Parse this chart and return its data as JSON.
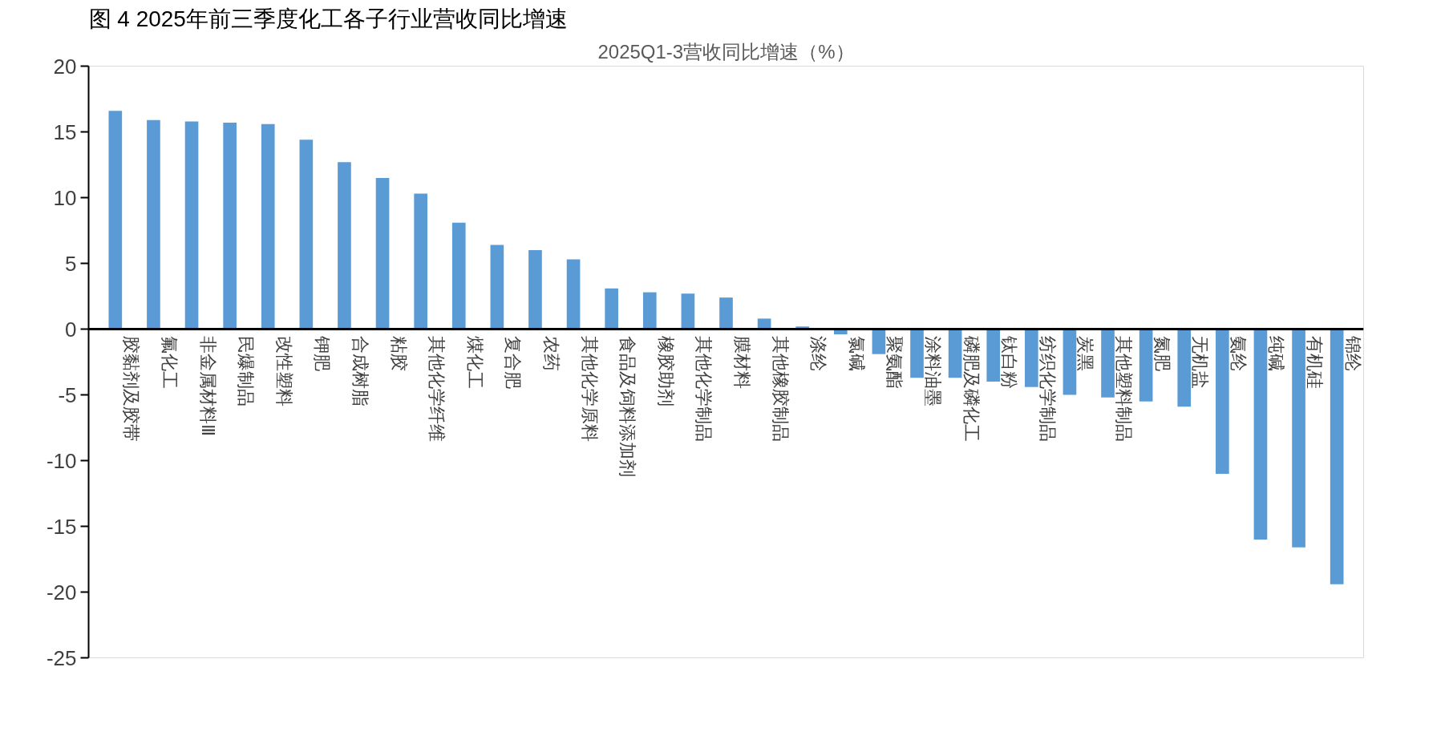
{
  "chart_data": {
    "type": "bar",
    "title": "图 4 2025年前三季度化工各子行业营收同比增速",
    "subtitle": "2025Q1-3营收同比增速（%）",
    "categories": [
      "胶黏剂及胶带",
      "氟化工",
      "非金属材料Ⅲ",
      "民爆制品",
      "改性塑料",
      "钾肥",
      "合成树脂",
      "粘胶",
      "其他化学纤维",
      "煤化工",
      "复合肥",
      "农药",
      "其他化学原料",
      "食品及饲料添加剂",
      "橡胶助剂",
      "其他化学制品",
      "膜材料",
      "其他橡胶制品",
      "涤纶",
      "氯碱",
      "聚氨酯",
      "涂料油墨",
      "磷肥及磷化工",
      "钛白粉",
      "纺织化学制品",
      "炭黑",
      "其他塑料制品",
      "氮肥",
      "无机盐",
      "氨纶",
      "纯碱",
      "有机硅",
      "锦纶"
    ],
    "values": [
      16.6,
      15.9,
      15.8,
      15.7,
      15.6,
      14.4,
      12.7,
      11.5,
      10.3,
      8.1,
      6.4,
      6.0,
      5.3,
      3.1,
      2.8,
      2.7,
      2.4,
      0.8,
      0.2,
      -0.4,
      -1.9,
      -3.7,
      -3.7,
      -4.0,
      -4.4,
      -5.0,
      -5.2,
      -5.5,
      -5.9,
      -11.0,
      -16.0,
      -16.6,
      -19.4
    ],
    "color": "#5b9bd5",
    "ylim": [
      -25,
      20
    ],
    "yticks": [
      -25,
      -20,
      -15,
      -10,
      -5,
      0,
      5,
      10,
      15,
      20
    ],
    "grid": false
  }
}
